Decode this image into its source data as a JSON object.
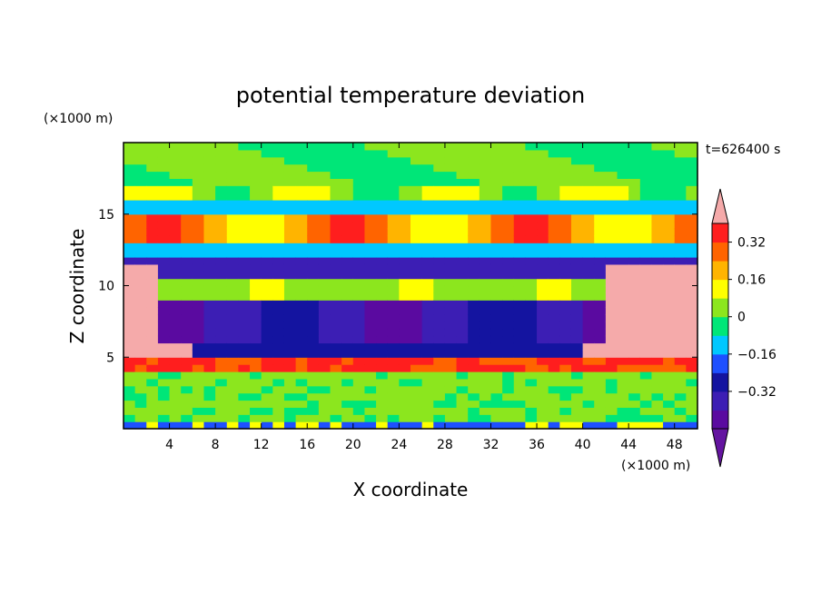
{
  "chart_data": {
    "type": "heatmap",
    "title": "potential temperature deviation",
    "xlabel": "X coordinate",
    "ylabel": "Z coordinate",
    "x_unit": "(×1000 m)",
    "y_unit": "(×1000 m)",
    "time_label": "t=626400 s",
    "xlim": [
      0,
      50
    ],
    "ylim": [
      0,
      20
    ],
    "xticks": [
      4,
      8,
      12,
      16,
      20,
      24,
      28,
      32,
      36,
      40,
      44,
      48
    ],
    "yticks": [
      5,
      10,
      15
    ],
    "colorbar": {
      "levels": [
        -0.48,
        -0.4,
        -0.32,
        -0.24,
        -0.16,
        -0.08,
        0.0,
        0.08,
        0.16,
        0.24,
        0.32,
        0.4
      ],
      "labels": [
        {
          "value": 0.32,
          "text": "0.32"
        },
        {
          "value": 0.16,
          "text": "0.16"
        },
        {
          "value": 0.0,
          "text": "0"
        },
        {
          "value": -0.16,
          "text": "−0.16"
        },
        {
          "value": -0.32,
          "text": "−0.32"
        }
      ],
      "colors": [
        "#5a0aa0",
        "#3c1eb4",
        "#1414a0",
        "#1e50ff",
        "#00c8ff",
        "#00e678",
        "#8ce61e",
        "#ffff00",
        "#ffb400",
        "#ff6400",
        "#ff1e1e",
        "#f5aaaa"
      ],
      "under_color": "#6414a0",
      "over_color": "#f5aaaa"
    },
    "field_description_grid": {
      "nx": 50,
      "nz": 40,
      "x_step": 1.0,
      "z_step": 0.5
    }
  }
}
